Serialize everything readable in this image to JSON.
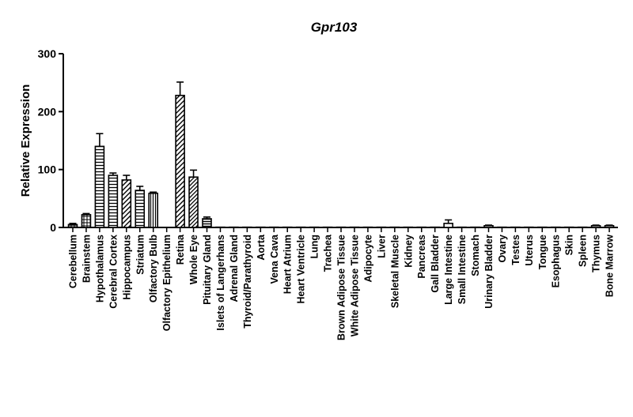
{
  "chart_data": {
    "type": "bar",
    "title": "Gpr103",
    "xlabel": "",
    "ylabel": "Relative Expression",
    "ylim": [
      0,
      300
    ],
    "yticks": [
      "0",
      "100",
      "200",
      "300"
    ],
    "grid": false,
    "legend": "none",
    "error_bars": true,
    "categories": [
      "Cerebellum",
      "Brainstem",
      "Hypothalamus",
      "Cerebral Cortex",
      "Hippocampus",
      "Striatum",
      "Olfactory Bulb",
      "Olfactory Epithelium",
      "Retina",
      "Whole Eye",
      "Pituitary Gland",
      "Islets of Langerhans",
      "Adrenal Gland",
      "Thyroid/Parathyroid",
      "Aorta",
      "Vena Cava",
      "Heart Atrium",
      "Heart Ventricle",
      "Lung",
      "Trachea",
      "Brown Adipose Tissue",
      "White Adipose Tissue",
      "Adipocyte",
      "Liver",
      "Skeletal Muscle",
      "Kidney",
      "Pancreas",
      "Gall Bladder",
      "Large Intestine",
      "Small Intestine",
      "Stomach",
      "Urinary Bladder",
      "Ovary",
      "Testes",
      "Uterus",
      "Tongue",
      "Esophagus",
      "Skin",
      "Spleen",
      "Thymus",
      "Bone Marrow"
    ],
    "values": [
      5,
      22,
      140,
      90,
      82,
      64,
      59,
      0,
      228,
      87,
      15,
      0.5,
      0.5,
      0.5,
      0.5,
      0.5,
      0.5,
      0.5,
      0.5,
      0.5,
      0.5,
      0.5,
      0.5,
      0.5,
      0.5,
      0.5,
      0.5,
      0.5,
      7,
      0.5,
      0.5,
      3,
      0.5,
      0.5,
      0.5,
      0.5,
      0.5,
      0.5,
      0.5,
      3,
      3
    ],
    "errors": [
      2,
      2,
      22,
      4,
      8,
      7,
      2,
      0,
      23,
      12,
      3,
      0,
      0,
      0,
      0,
      0,
      0,
      0,
      0,
      0,
      0,
      0,
      0,
      0,
      0,
      0,
      0,
      0,
      6,
      0,
      0,
      1,
      0,
      0,
      0,
      0,
      0,
      0,
      0,
      1,
      1
    ]
  }
}
